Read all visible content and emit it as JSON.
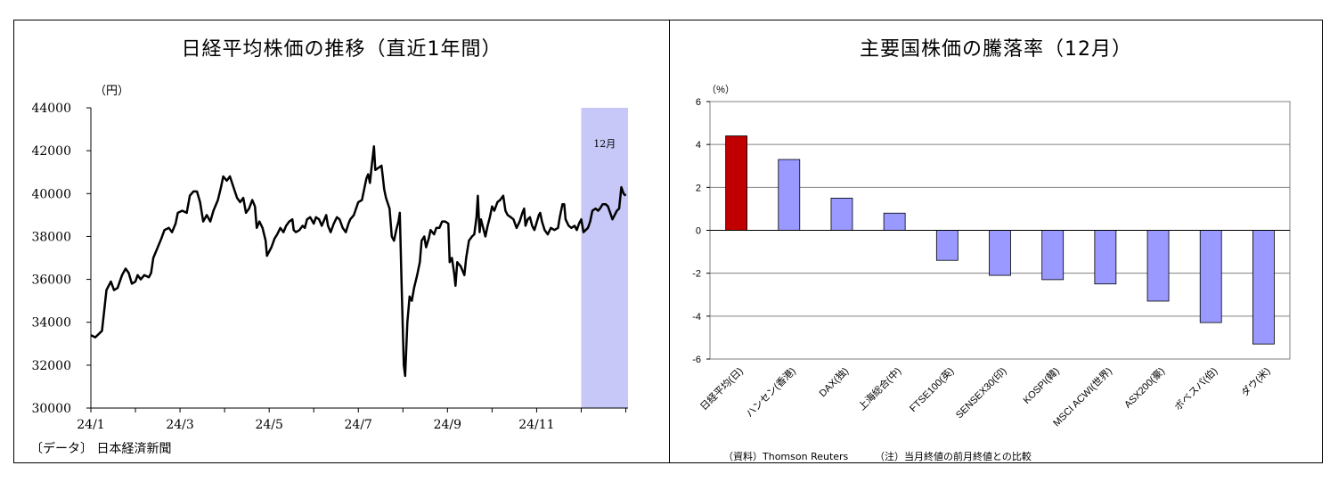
{
  "chart_data": [
    {
      "type": "line",
      "title": "日経平均株価の推移（直近1年間）",
      "ylabel": "（円）",
      "ylim": [
        30000,
        44000
      ],
      "yticks": [
        30000,
        32000,
        34000,
        36000,
        38000,
        40000,
        42000,
        44000
      ],
      "xtick_labels": [
        "24/1",
        "24/3",
        "24/5",
        "24/7",
        "24/9",
        "24/11"
      ],
      "xlim": [
        0,
        12.05
      ],
      "shade": {
        "from": 11.0,
        "to": 12.05,
        "label": "12月",
        "color": "#c8c8f8"
      },
      "source": "〔データ〕 日本経済新聞",
      "series": [
        {
          "color": "#000000",
          "points": [
            [
              0.0,
              33400
            ],
            [
              0.1,
              33300
            ],
            [
              0.25,
              33600
            ],
            [
              0.35,
              35500
            ],
            [
              0.45,
              35900
            ],
            [
              0.52,
              35500
            ],
            [
              0.6,
              35600
            ],
            [
              0.7,
              36200
            ],
            [
              0.78,
              36500
            ],
            [
              0.85,
              36300
            ],
            [
              0.92,
              35800
            ],
            [
              1.0,
              35900
            ],
            [
              1.05,
              36200
            ],
            [
              1.12,
              36000
            ],
            [
              1.2,
              36200
            ],
            [
              1.3,
              36100
            ],
            [
              1.35,
              36300
            ],
            [
              1.4,
              37000
            ],
            [
              1.5,
              37500
            ],
            [
              1.58,
              37900
            ],
            [
              1.65,
              38300
            ],
            [
              1.75,
              38400
            ],
            [
              1.82,
              38200
            ],
            [
              1.9,
              38600
            ],
            [
              1.95,
              39100
            ],
            [
              2.05,
              39200
            ],
            [
              2.15,
              39100
            ],
            [
              2.22,
              39900
            ],
            [
              2.3,
              40100
            ],
            [
              2.38,
              40100
            ],
            [
              2.45,
              39600
            ],
            [
              2.52,
              38700
            ],
            [
              2.6,
              39000
            ],
            [
              2.68,
              38700
            ],
            [
              2.75,
              39200
            ],
            [
              2.85,
              39700
            ],
            [
              2.92,
              40300
            ],
            [
              2.97,
              40800
            ],
            [
              3.05,
              40600
            ],
            [
              3.12,
              40800
            ],
            [
              3.2,
              40300
            ],
            [
              3.28,
              39800
            ],
            [
              3.35,
              39600
            ],
            [
              3.42,
              39800
            ],
            [
              3.48,
              39100
            ],
            [
              3.55,
              39300
            ],
            [
              3.62,
              39700
            ],
            [
              3.68,
              39400
            ],
            [
              3.72,
              38400
            ],
            [
              3.78,
              38700
            ],
            [
              3.85,
              38400
            ],
            [
              3.92,
              37800
            ],
            [
              3.95,
              37100
            ],
            [
              4.05,
              37500
            ],
            [
              4.12,
              37900
            ],
            [
              4.18,
              38100
            ],
            [
              4.25,
              38400
            ],
            [
              4.32,
              38200
            ],
            [
              4.38,
              38500
            ],
            [
              4.45,
              38700
            ],
            [
              4.52,
              38800
            ],
            [
              4.55,
              38300
            ],
            [
              4.6,
              38200
            ],
            [
              4.68,
              38300
            ],
            [
              4.75,
              38500
            ],
            [
              4.8,
              38400
            ],
            [
              4.85,
              38800
            ],
            [
              4.92,
              38900
            ],
            [
              5.0,
              38600
            ],
            [
              5.05,
              38900
            ],
            [
              5.12,
              38800
            ],
            [
              5.18,
              38500
            ],
            [
              5.22,
              38700
            ],
            [
              5.28,
              39000
            ],
            [
              5.32,
              38500
            ],
            [
              5.38,
              38200
            ],
            [
              5.45,
              38600
            ],
            [
              5.52,
              38900
            ],
            [
              5.58,
              38800
            ],
            [
              5.65,
              38400
            ],
            [
              5.72,
              38200
            ],
            [
              5.78,
              38600
            ],
            [
              5.82,
              38800
            ],
            [
              5.9,
              39000
            ],
            [
              5.95,
              39300
            ],
            [
              6.0,
              39600
            ],
            [
              6.08,
              39700
            ],
            [
              6.12,
              40100
            ],
            [
              6.18,
              40700
            ],
            [
              6.22,
              40900
            ],
            [
              6.26,
              40500
            ],
            [
              6.3,
              41300
            ],
            [
              6.35,
              42200
            ],
            [
              6.38,
              41100
            ],
            [
              6.45,
              41200
            ],
            [
              6.52,
              41300
            ],
            [
              6.58,
              40200
            ],
            [
              6.62,
              39800
            ],
            [
              6.7,
              39300
            ],
            [
              6.75,
              38000
            ],
            [
              6.8,
              37800
            ],
            [
              6.85,
              38300
            ],
            [
              6.9,
              38700
            ],
            [
              6.93,
              39100
            ],
            [
              6.97,
              35800
            ],
            [
              7.02,
              32000
            ],
            [
              7.05,
              31500
            ],
            [
              7.1,
              34000
            ],
            [
              7.15,
              35200
            ],
            [
              7.2,
              35000
            ],
            [
              7.25,
              35600
            ],
            [
              7.32,
              36200
            ],
            [
              7.38,
              36800
            ],
            [
              7.42,
              37800
            ],
            [
              7.48,
              38000
            ],
            [
              7.52,
              37500
            ],
            [
              7.58,
              37900
            ],
            [
              7.62,
              38300
            ],
            [
              7.7,
              38100
            ],
            [
              7.75,
              38400
            ],
            [
              7.82,
              38400
            ],
            [
              7.88,
              38700
            ],
            [
              7.95,
              38700
            ],
            [
              8.02,
              38600
            ],
            [
              8.05,
              36800
            ],
            [
              8.1,
              37000
            ],
            [
              8.15,
              36300
            ],
            [
              8.18,
              35700
            ],
            [
              8.22,
              36800
            ],
            [
              8.3,
              36600
            ],
            [
              8.38,
              36200
            ],
            [
              8.42,
              37000
            ],
            [
              8.48,
              37800
            ],
            [
              8.55,
              38000
            ],
            [
              8.6,
              38100
            ],
            [
              8.65,
              38900
            ],
            [
              8.68,
              39900
            ],
            [
              8.7,
              39000
            ],
            [
              8.72,
              38200
            ],
            [
              8.75,
              38800
            ],
            [
              8.8,
              38400
            ],
            [
              8.85,
              38000
            ],
            [
              8.9,
              38500
            ],
            [
              8.95,
              38900
            ],
            [
              9.0,
              39400
            ],
            [
              9.05,
              39200
            ],
            [
              9.12,
              39600
            ],
            [
              9.18,
              39700
            ],
            [
              9.25,
              39900
            ],
            [
              9.3,
              39200
            ],
            [
              9.35,
              39000
            ],
            [
              9.42,
              38900
            ],
            [
              9.48,
              38800
            ],
            [
              9.55,
              38400
            ],
            [
              9.62,
              38700
            ],
            [
              9.68,
              39100
            ],
            [
              9.72,
              39300
            ],
            [
              9.75,
              38500
            ],
            [
              9.8,
              38800
            ],
            [
              9.85,
              38900
            ],
            [
              9.9,
              38500
            ],
            [
              9.95,
              38300
            ],
            [
              9.98,
              38500
            ],
            [
              10.05,
              39000
            ],
            [
              10.08,
              39100
            ],
            [
              10.12,
              38700
            ],
            [
              10.18,
              38300
            ],
            [
              10.25,
              38100
            ],
            [
              10.32,
              38400
            ],
            [
              10.4,
              38300
            ],
            [
              10.48,
              38400
            ],
            [
              10.52,
              38900
            ],
            [
              10.58,
              39500
            ],
            [
              10.62,
              39500
            ],
            [
              10.65,
              38800
            ],
            [
              10.72,
              38500
            ],
            [
              10.78,
              38400
            ],
            [
              10.85,
              38500
            ],
            [
              10.9,
              38300
            ],
            [
              10.95,
              38600
            ],
            [
              11.0,
              38800
            ],
            [
              11.05,
              38200
            ],
            [
              11.1,
              38300
            ],
            [
              11.15,
              38400
            ],
            [
              11.2,
              38700
            ],
            [
              11.25,
              39200
            ],
            [
              11.32,
              39300
            ],
            [
              11.38,
              39200
            ],
            [
              11.42,
              39300
            ],
            [
              11.48,
              39500
            ],
            [
              11.55,
              39500
            ],
            [
              11.6,
              39400
            ],
            [
              11.65,
              39100
            ],
            [
              11.7,
              38800
            ],
            [
              11.75,
              39000
            ],
            [
              11.8,
              39200
            ],
            [
              11.85,
              39300
            ],
            [
              11.9,
              40300
            ],
            [
              11.95,
              40000
            ],
            [
              12.0,
              39900
            ]
          ]
        }
      ]
    },
    {
      "type": "bar",
      "title": "主要国株価の騰落率（12月）",
      "ylabel": "（%）",
      "ylim": [
        -6,
        6
      ],
      "yticks": [
        -6,
        -4,
        -2,
        0,
        2,
        4,
        6
      ],
      "categories": [
        "日経平均(日)",
        "ハンセン(香港)",
        "DAX(独)",
        "上海総合(中)",
        "FTSE100(英)",
        "SENSEX30(印)",
        "KOSPI(韓)",
        "MSCI ACWI(世界)",
        "ASX200(豪)",
        "ボベスパ(伯)",
        "ダウ(米)"
      ],
      "values": [
        4.4,
        3.3,
        1.5,
        0.8,
        -1.4,
        -2.1,
        -2.3,
        -2.5,
        -3.3,
        -4.3,
        -5.3
      ],
      "colors": [
        "#c00000",
        "#9999ff",
        "#9999ff",
        "#9999ff",
        "#9999ff",
        "#9999ff",
        "#9999ff",
        "#9999ff",
        "#9999ff",
        "#9999ff",
        "#9999ff"
      ],
      "grid": true,
      "source": "（資料）Thomson Reuters",
      "note": "（注）当月終値の前月終値との比較"
    }
  ]
}
